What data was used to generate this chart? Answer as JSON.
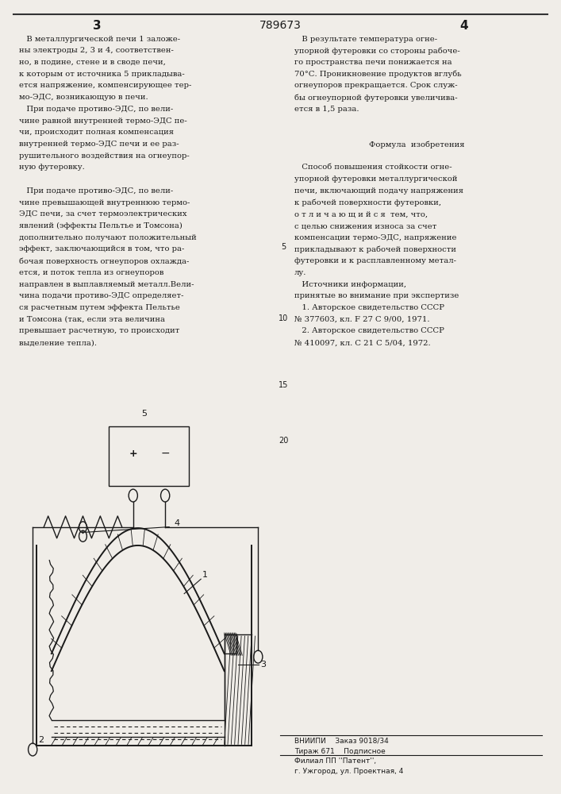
{
  "page_width": 7.07,
  "page_height": 10.0,
  "bg_color": "#f0ede8",
  "text_color": "#1a1a1a",
  "header_line_color": "#333333",
  "patent_number": "789673",
  "page_left_num": "3",
  "page_right_num": "4",
  "col1_text": [
    "   В металлургической печи 1 заложе-",
    "ны электроды 2, 3 и 4, соответствен-",
    "но, в подине, стене и в своде печи,",
    "к которым от источника 5 прикладыва-",
    "ется напряжение, компенсирующее тер-",
    "мо-ЭДС, возникающую в печи.",
    "   При подаче противо-ЭДС, по вели-",
    "чине равной внутренней термо-ЭДС пе-",
    "чи, происходит полная компенсация",
    "внутренней термо-ЭДС печи и ее раз-",
    "рушительного воздействия на огнеупор-",
    "ную футеровку.",
    "",
    "   При подаче противо-ЭДС, по вели-",
    "чине превышающей внутреннюю термо-",
    "ЭДС печи, за счет термоэлектрических",
    "явлений (эффекты Пельтье и Томсона)",
    "дополнительно получают положительный",
    "эффект, заключающийся в том, что ра-",
    "бочая поверхность огнеупоров охлажда-",
    "ется, и поток тепла из огнеупоров",
    "направлен в выплавляемый металл.Вели-",
    "чина подачи противо-ЭДС определяет-",
    "ся расчетным путем эффекта Пельтье",
    "и Томсона (так, если эта величина",
    "превышает расчетную, то происходит",
    "выделение тепла)."
  ],
  "col2_text": [
    "   В результате температура огне-",
    "упорной футеровки со стороны рабоче-",
    "го пространства печи понижается на",
    "70°С. Проникновение продуктов вглубь",
    "огнеупоров прекращается. Срок служ-",
    "бы огнеупорной футеровки увеличива-",
    "ется в 1,5 раза.",
    "",
    "",
    "   Формула  изобретения",
    "",
    "   Способ повышения стойкости огне-",
    "упорной футеровки металлургической",
    "печи, включающий подачу напряжения",
    "к рабочей поверхности футеровки,",
    "о т л и ч а ю щ и й с я  тем, что,",
    "с целью снижения износа за счет",
    "компенсации термо-ЭДС, напряжение",
    "прикладывают к рабочей поверхности",
    "футеровки и к расплавленному метал-",
    "лу.",
    "   Источники информации,",
    "принятые во внимание при экспертизе",
    "   1. Авторское свидетельство СССР",
    "№ 377603, кл. F 27 С 9/00, 1971.",
    "   2. Авторское свидетельство СССР",
    "№ 410097, кл. С 21 С 5/04, 1972."
  ],
  "footer_line1": "ВНИИПИ    Заказ 9018/34",
  "footer_line2": "Тираж 671    Подписное",
  "footer_line3": "Филиал ПП ''Патент'',",
  "footer_line4": "г. Ужгород, ул. Проектная, 4"
}
